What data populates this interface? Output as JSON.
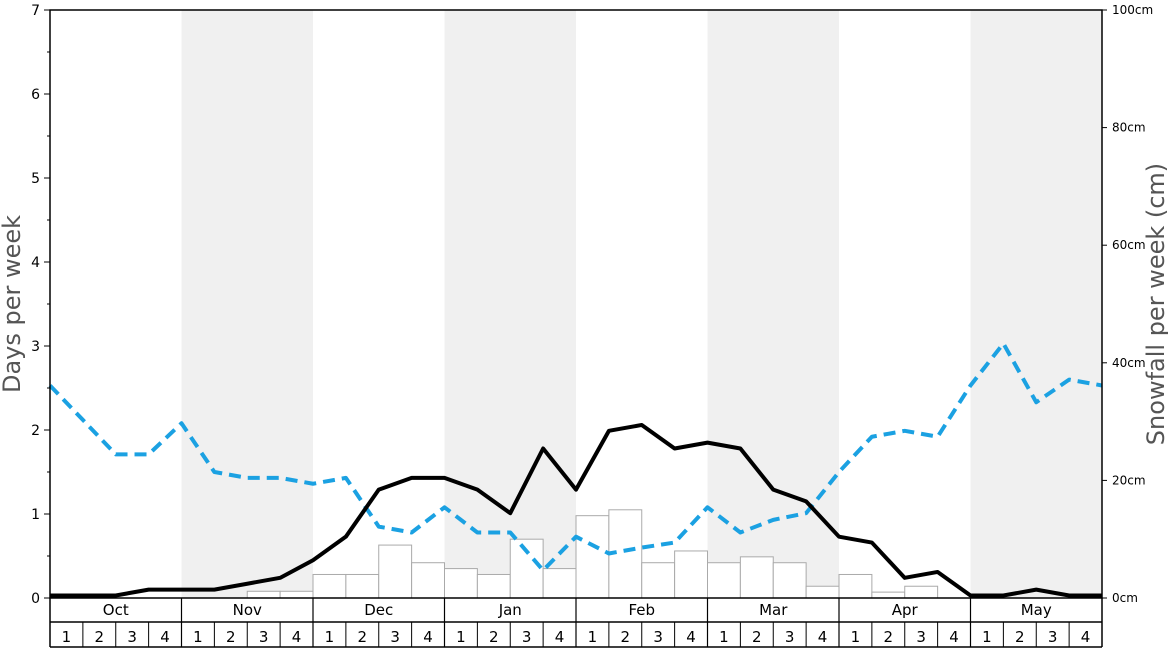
{
  "chart_data": {
    "type": "bar+line",
    "ylabel_left": "Days per week",
    "ylabel_right": "Snowfall per week (cm)",
    "ylim_left": [
      0,
      7
    ],
    "ylim_right": [
      0,
      100
    ],
    "left_ticks": [
      "0",
      "1",
      "2",
      "3",
      "4",
      "5",
      "6",
      "7"
    ],
    "right_ticks": [
      "0cm",
      "20cm",
      "40cm",
      "60cm",
      "80cm",
      "100cm"
    ],
    "months": [
      "Oct",
      "Nov",
      "Dec",
      "Jan",
      "Feb",
      "Mar",
      "Apr",
      "May"
    ],
    "week_labels": [
      "1",
      "2",
      "3",
      "4"
    ],
    "shaded_months": [
      "Nov",
      "Jan",
      "Mar",
      "May"
    ],
    "colors": {
      "shade": "#f0f0f0",
      "bar_fill": "#ffffff",
      "bar_stroke": "#aaaaaa",
      "solid_line": "#000000",
      "dashed_line": "#1ba1e2"
    },
    "bars_snowfall_days": [
      0,
      0,
      0,
      0,
      0,
      0,
      0.08,
      0.08,
      0.28,
      0.28,
      0.63,
      0.42,
      0.35,
      0.28,
      0.7,
      0.35,
      0.98,
      1.05,
      0.42,
      0.56,
      0.42,
      0.49,
      0.42,
      0.14,
      0.28,
      0.07,
      0.14,
      0,
      0,
      0,
      0,
      0
    ],
    "solid_line_days": [
      0.03,
      0.03,
      0.03,
      0.1,
      0.1,
      0.1,
      0.17,
      0.24,
      0.45,
      0.73,
      1.29,
      1.43,
      1.43,
      1.29,
      1.01,
      1.78,
      1.29,
      1.99,
      2.06,
      1.78,
      1.85,
      1.78,
      1.29,
      1.15,
      0.73,
      0.66,
      0.24,
      0.31,
      0.03,
      0.03,
      0.1,
      0.03,
      0.03
    ],
    "dashed_line_days": [
      2.53,
      2.12,
      1.71,
      1.71,
      2.08,
      1.5,
      1.43,
      1.43,
      1.36,
      1.43,
      0.85,
      0.78,
      1.08,
      0.78,
      0.78,
      0.33,
      0.73,
      0.53,
      0.6,
      0.66,
      1.08,
      0.78,
      0.93,
      1.01,
      1.5,
      1.92,
      1.99,
      1.92,
      2.53,
      3.03,
      2.33,
      2.6,
      2.53
    ]
  }
}
